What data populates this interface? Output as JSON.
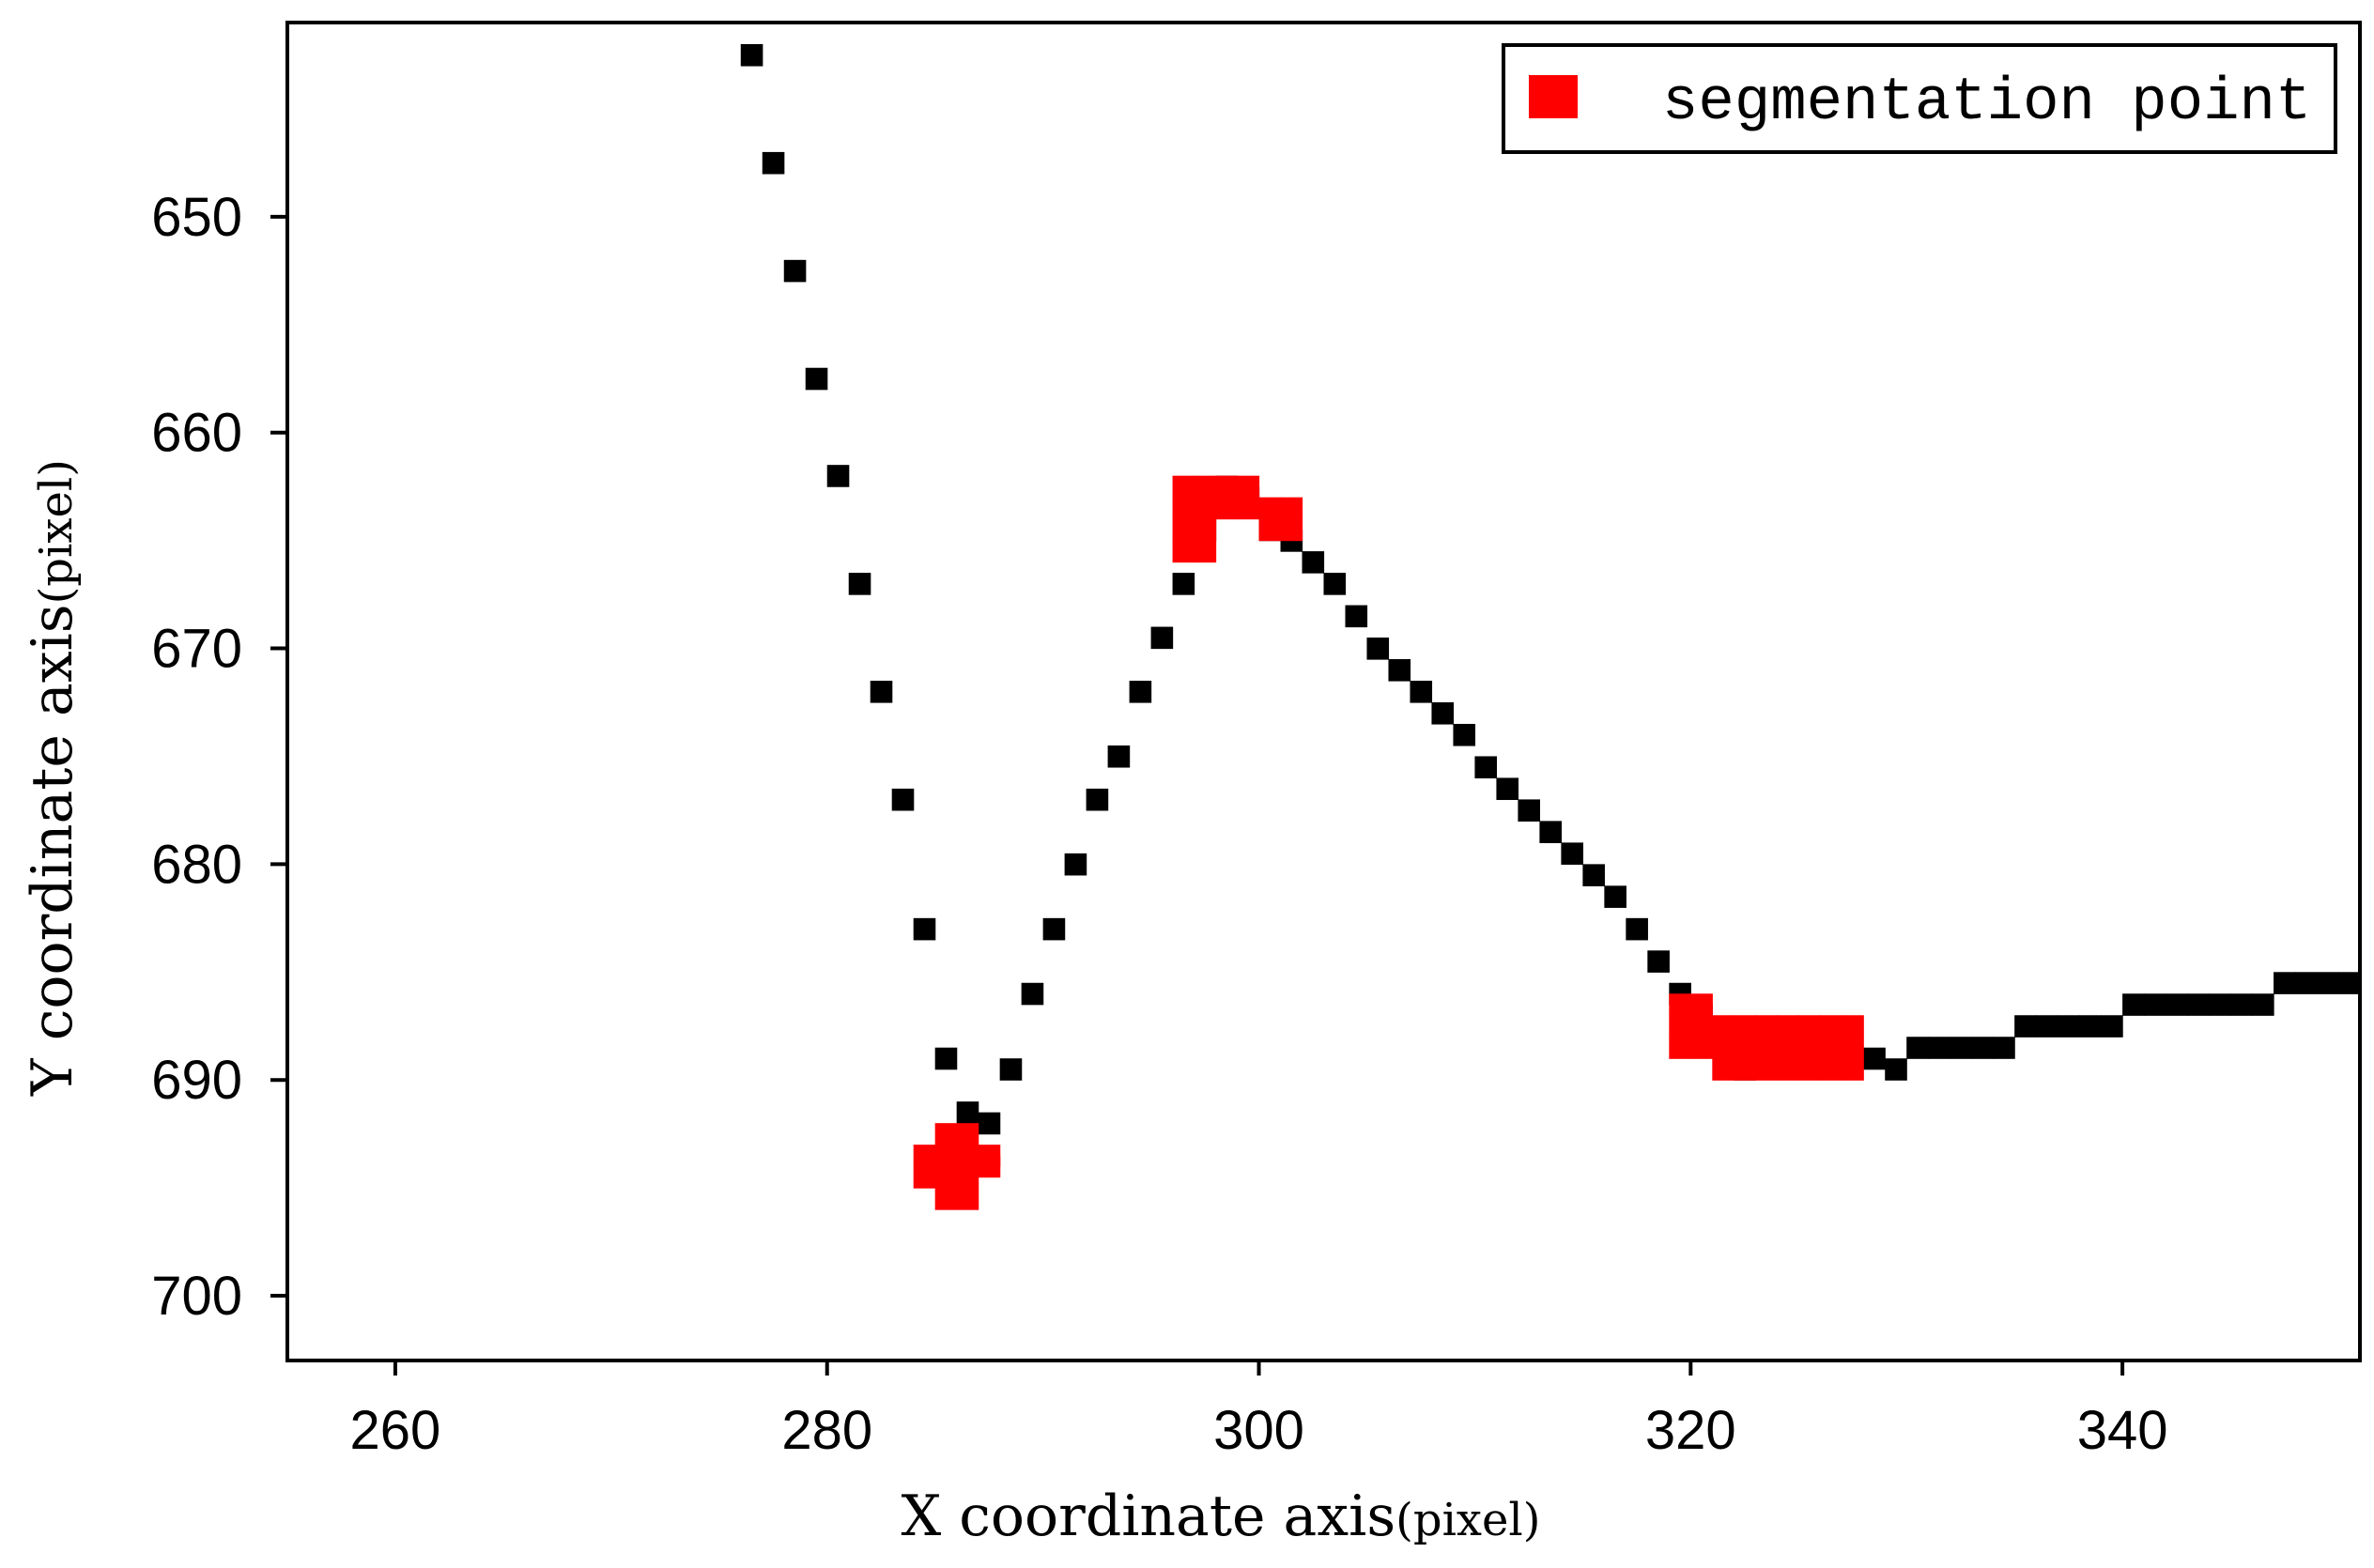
{
  "chart_data": {
    "type": "scatter",
    "xlabel": "X coordinate axis",
    "xlabel_unit": "(pixel)",
    "ylabel": "Y coordinate axis",
    "ylabel_unit": "(pixel)",
    "xlim": [
      255,
      351
    ],
    "ylim": [
      703,
      641
    ],
    "y_inverted": true,
    "x_ticks": [
      260,
      280,
      300,
      320,
      340
    ],
    "y_ticks": [
      650,
      660,
      670,
      680,
      690,
      700
    ],
    "grid": false,
    "legend_position": "top-right",
    "colors": {
      "contour": "#000000",
      "segmentation": "#ff0000"
    },
    "series": [
      {
        "style": "contour",
        "x": [
          276.5,
          277.5,
          278.5,
          279.5,
          280.5,
          281.5,
          282.5,
          283.5,
          284.5,
          285.5,
          286.5,
          287.5,
          288.5,
          289.5,
          290.5,
          291.5,
          292.5,
          293.5,
          294.5,
          295.5,
          296.5,
          297.5,
          298.5,
          299.5,
          300.5,
          301.5,
          302.5,
          303.5,
          304.5,
          305.5,
          306.5,
          307.5,
          308.5,
          309.5,
          310.5,
          311.5,
          312.5,
          313.5,
          314.5,
          315.5,
          316.5,
          317.5,
          318.5,
          319.5,
          320.5,
          321.5,
          322.5,
          323.5,
          324.5,
          325.5,
          326.5,
          327.5,
          328.5,
          329.5,
          330.5,
          331.5,
          332.5,
          333.5,
          334.5,
          335.5,
          336.5,
          337.5,
          338.5,
          339.5,
          340.5,
          341.5,
          342.5,
          343.5,
          344.5,
          345.5,
          346.5,
          347.5,
          348.5,
          349.5,
          350.5
        ],
        "y": [
          642.5,
          647.5,
          652.5,
          657.5,
          662.0,
          667.0,
          672.0,
          677.0,
          683.0,
          689.0,
          691.5,
          692.0,
          689.5,
          686.0,
          683.0,
          680.0,
          677.0,
          675.0,
          672.0,
          669.5,
          667.0,
          664.5,
          662.5,
          663.0,
          664.5,
          665.0,
          666.0,
          667.0,
          668.5,
          670.0,
          671.0,
          672.0,
          673.0,
          674.0,
          675.5,
          676.5,
          677.5,
          678.5,
          679.5,
          680.5,
          681.5,
          683.0,
          684.5,
          686.0,
          687.0,
          688.5,
          689.5,
          689.0,
          689.0,
          689.0,
          689.0,
          689.0,
          689.0,
          689.5,
          688.5,
          688.5,
          688.5,
          688.5,
          688.5,
          687.5,
          687.5,
          687.5,
          687.5,
          687.5,
          686.5,
          686.5,
          686.5,
          686.5,
          686.5,
          686.5,
          686.5,
          685.5,
          685.5,
          685.5,
          685.5
        ]
      },
      {
        "name": "segmentation point",
        "style": "segmentation",
        "x": [
          284.5,
          285.5,
          286.5,
          287.5,
          285.5,
          286.5,
          284.5,
          285.5,
          286.5,
          285.5,
          286.5,
          287.5,
          296.5,
          297.5,
          298.5,
          299.5,
          296.5,
          297.5,
          298.5,
          299.5,
          300.5,
          301.5,
          296.5,
          297.5,
          300.5,
          301.5,
          296.5,
          297.5,
          319.5,
          320.5,
          319.5,
          320.5,
          321.5,
          322.5,
          323.5,
          324.5,
          325.5,
          326.5,
          327.5,
          319.5,
          320.5,
          321.5,
          322.5,
          323.5,
          324.5,
          325.5,
          326.5,
          327.5,
          321.5,
          322.5,
          323.5,
          324.5,
          325.5,
          326.5,
          327.5
        ],
        "y": [
          693.5,
          693.5,
          693.5,
          693.5,
          692.5,
          692.5,
          694.5,
          694.5,
          694.5,
          695.5,
          695.5,
          694.0,
          662.5,
          662.5,
          662.5,
          662.5,
          663.5,
          663.5,
          663.5,
          663.5,
          663.5,
          663.5,
          664.5,
          664.5,
          664.5,
          664.5,
          665.5,
          665.5,
          686.5,
          686.5,
          687.5,
          687.5,
          687.5,
          687.5,
          687.5,
          687.5,
          687.5,
          687.5,
          687.5,
          688.5,
          688.5,
          688.5,
          688.5,
          688.5,
          688.5,
          688.5,
          688.5,
          688.5,
          689.5,
          689.5,
          689.5,
          689.5,
          689.5,
          689.5,
          689.5
        ]
      }
    ]
  }
}
